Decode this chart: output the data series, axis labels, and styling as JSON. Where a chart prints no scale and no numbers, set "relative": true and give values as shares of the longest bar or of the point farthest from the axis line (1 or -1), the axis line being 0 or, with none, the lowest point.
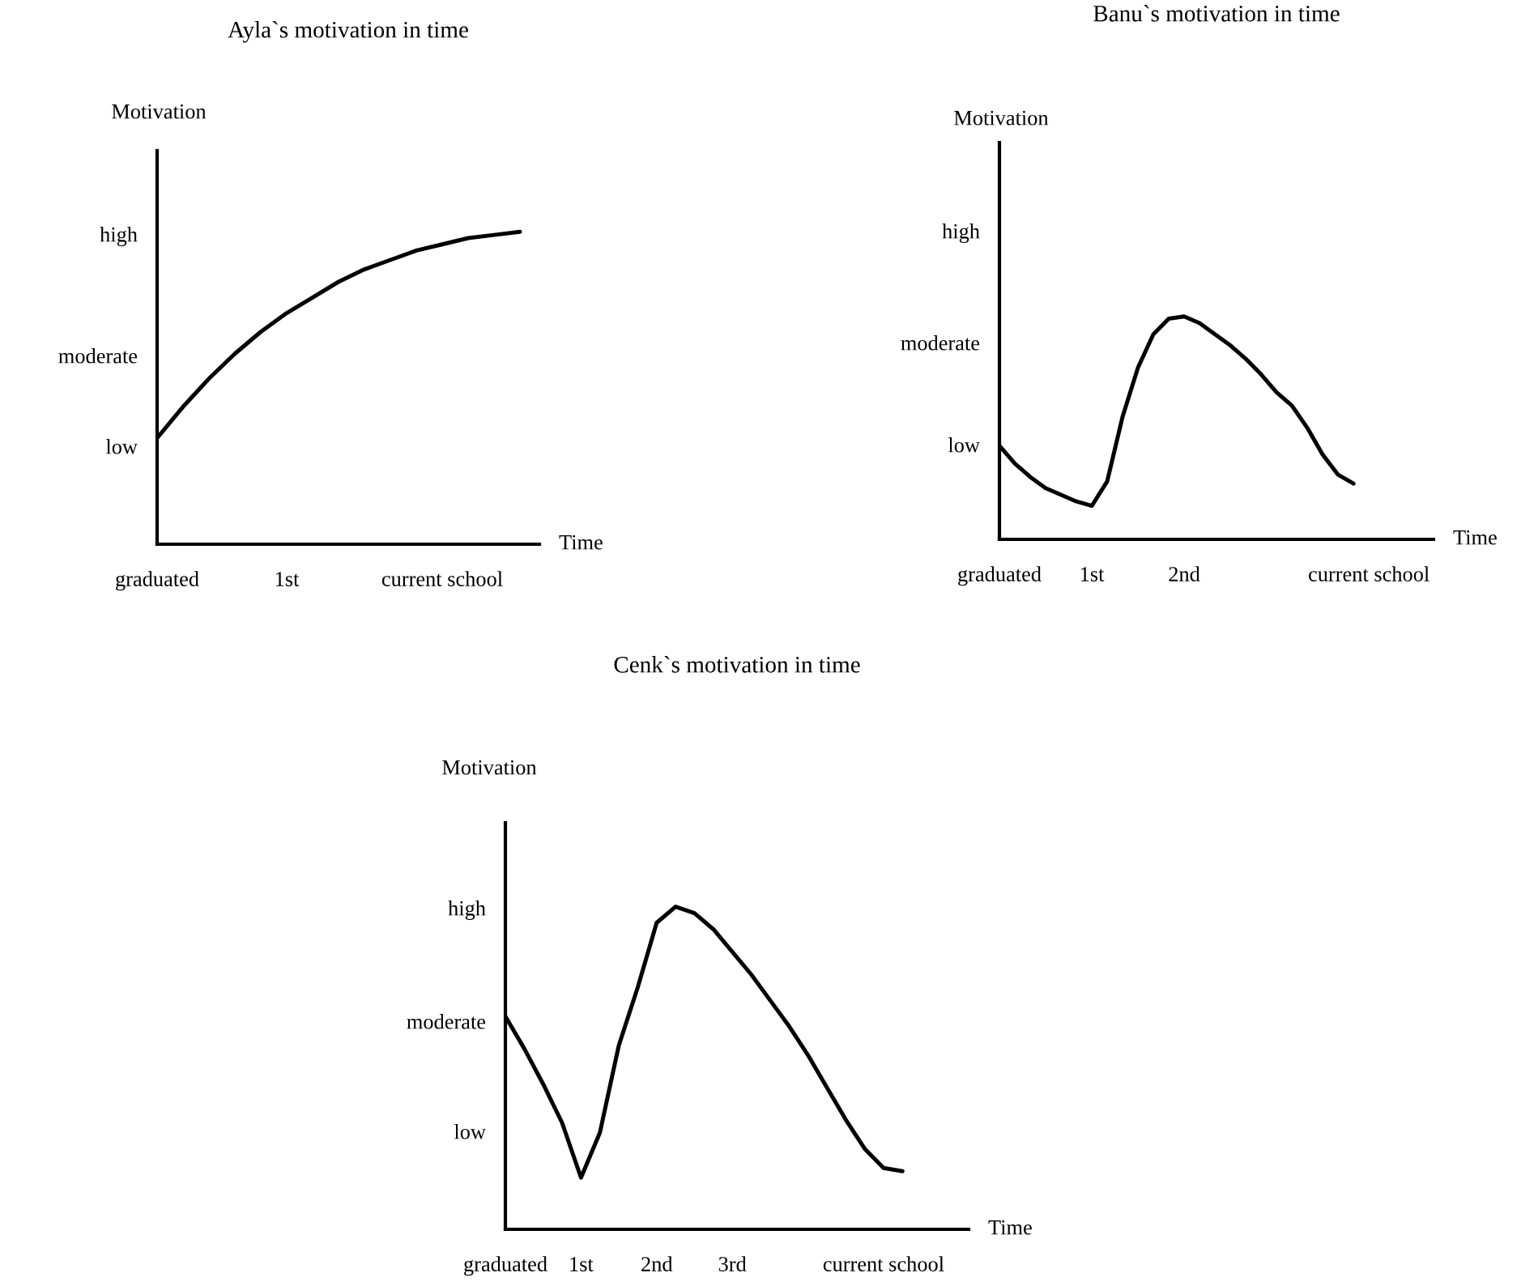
{
  "chart_data": [
    {
      "type": "line",
      "relative": true,
      "title": "Ayla`s motivation in time",
      "xlabel": "Time",
      "ylabel": "Motivation",
      "categories": [
        "graduated",
        null,
        null,
        null,
        null,
        "1st",
        null,
        null,
        null,
        null,
        null,
        "current school",
        null,
        null,
        null
      ],
      "annotations": [
        "low",
        "moderate",
        "high"
      ],
      "series": [
        {
          "color": "#000000",
          "values": [
            0.34,
            0.44,
            0.53,
            0.61,
            0.68,
            0.74,
            0.79,
            0.84,
            0.88,
            0.91,
            0.94,
            0.96,
            0.98,
            0.99,
            1.0
          ]
        }
      ]
    },
    {
      "type": "line",
      "relative": true,
      "title": "Banu`s motivation in time",
      "xlabel": "Time",
      "ylabel": "Motivation",
      "categories": [
        "graduated",
        null,
        null,
        null,
        null,
        null,
        "1st",
        null,
        null,
        null,
        null,
        null,
        "2nd",
        null,
        null,
        null,
        null,
        null,
        null,
        null,
        null,
        null,
        null,
        null,
        "current school"
      ],
      "annotations": [
        "low",
        "moderate",
        "high"
      ],
      "series": [
        {
          "color": "#000000",
          "values": [
            0.42,
            0.34,
            0.28,
            0.23,
            0.2,
            0.17,
            0.15,
            0.26,
            0.55,
            0.77,
            0.92,
            0.99,
            1.0,
            0.97,
            0.92,
            0.87,
            0.81,
            0.74,
            0.66,
            0.6,
            0.5,
            0.38,
            0.29,
            0.25,
            null
          ]
        }
      ]
    },
    {
      "type": "line",
      "relative": true,
      "title": "Cenk`s motivation in time",
      "xlabel": "Time",
      "ylabel": "Motivation",
      "categories": [
        "graduated",
        null,
        null,
        null,
        "1st",
        null,
        null,
        null,
        "2nd",
        null,
        null,
        null,
        "3rd",
        null,
        null,
        null,
        null,
        null,
        null,
        null,
        "current school",
        null
      ],
      "annotations": [
        "low",
        "moderate",
        "high"
      ],
      "series": [
        {
          "color": "#000000",
          "values": [
            0.66,
            0.56,
            0.45,
            0.33,
            0.16,
            0.3,
            0.57,
            0.75,
            0.95,
            1.0,
            0.98,
            0.93,
            0.86,
            0.79,
            0.71,
            0.63,
            0.54,
            0.44,
            0.34,
            0.25,
            0.19,
            0.18
          ]
        }
      ]
    }
  ]
}
